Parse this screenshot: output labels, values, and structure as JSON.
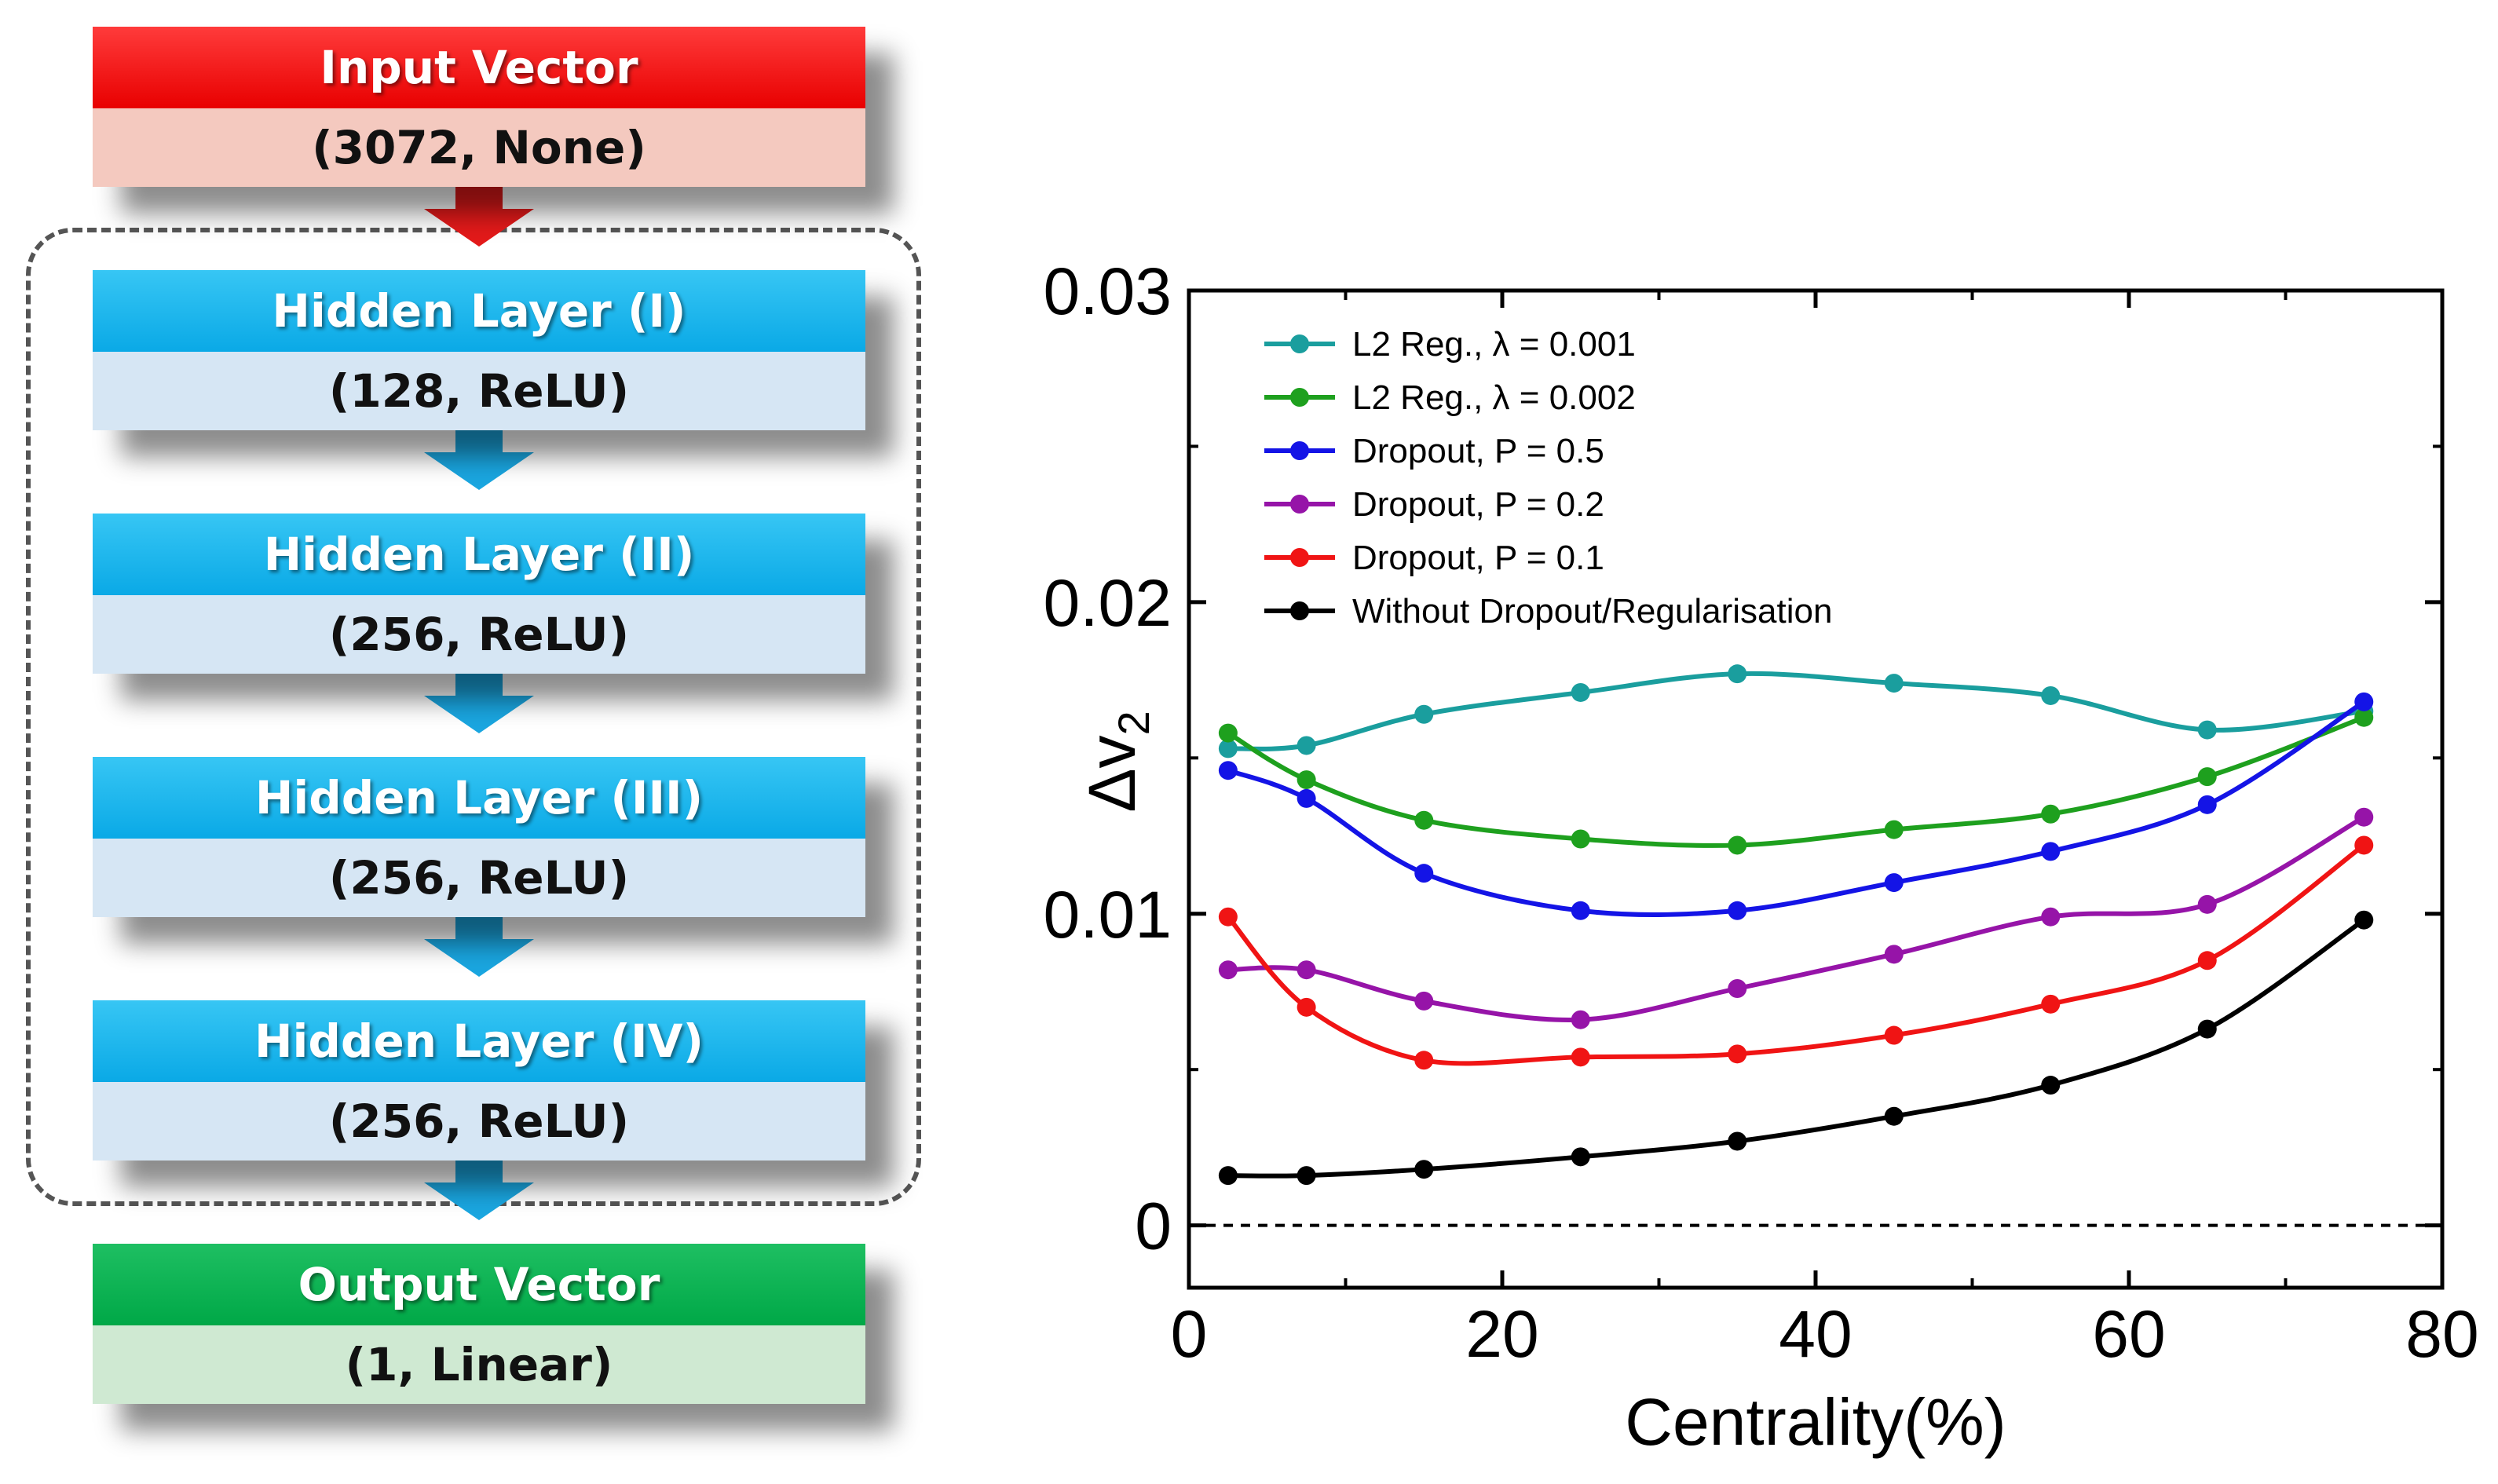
{
  "diagram": {
    "blocks": [
      {
        "title": "Input Vector",
        "detail": "(3072, None)",
        "kind": "input"
      },
      {
        "title": "Hidden Layer (I)",
        "detail": "(128, ReLU)",
        "kind": "hidden"
      },
      {
        "title": "Hidden Layer (II)",
        "detail": "(256, ReLU)",
        "kind": "hidden"
      },
      {
        "title": "Hidden Layer (III)",
        "detail": "(256, ReLU)",
        "kind": "hidden"
      },
      {
        "title": "Hidden Layer (IV)",
        "detail": "(256, ReLU)",
        "kind": "hidden"
      },
      {
        "title": "Output Vector",
        "detail": "(1, Linear)",
        "kind": "output"
      }
    ],
    "colors": {
      "input": "#e80000",
      "hidden": "#0aa9e6",
      "output": "#00a847",
      "dashed_box": "#555555"
    }
  },
  "chart_data": {
    "type": "line",
    "xlabel": "Centrality(%)",
    "ylabel": "Δv",
    "ylabel_subscript": "2",
    "xlim": [
      0,
      80
    ],
    "ylim": [
      -0.002,
      0.03
    ],
    "xticks": [
      0,
      20,
      40,
      60,
      80
    ],
    "xtick_labels": [
      "0",
      "20",
      "40",
      "60",
      "80"
    ],
    "yticks": [
      0,
      0.01,
      0.02,
      0.03
    ],
    "ytick_labels": [
      "0",
      "0.01",
      "0.02",
      "0.03"
    ],
    "grid": false,
    "zero_line": "dashed",
    "legend_position": "top-left",
    "x": [
      2.5,
      7.5,
      15,
      25,
      35,
      45,
      55,
      65,
      75
    ],
    "series": [
      {
        "name": "L2 Reg., λ = 0.001",
        "color": "#1a9e9e",
        "values": [
          0.0153,
          0.0154,
          0.0164,
          0.0171,
          0.0177,
          0.0174,
          0.017,
          0.0159,
          0.0165
        ]
      },
      {
        "name": "L2 Reg., λ = 0.002",
        "color": "#1ea01e",
        "values": [
          0.0158,
          0.0143,
          0.013,
          0.0124,
          0.0122,
          0.0127,
          0.0132,
          0.0144,
          0.0163
        ]
      },
      {
        "name": "Dropout, P = 0.5",
        "color": "#1414e6",
        "values": [
          0.0146,
          0.0137,
          0.0113,
          0.0101,
          0.0101,
          0.011,
          0.012,
          0.0135,
          0.0168
        ]
      },
      {
        "name": "Dropout, P = 0.2",
        "color": "#9614a8",
        "values": [
          0.0082,
          0.0082,
          0.0072,
          0.0066,
          0.0076,
          0.0087,
          0.0099,
          0.0103,
          0.0131
        ]
      },
      {
        "name": "Dropout, P = 0.1",
        "color": "#f01414",
        "values": [
          0.0099,
          0.007,
          0.0053,
          0.0054,
          0.0055,
          0.0061,
          0.0071,
          0.0085,
          0.0122
        ]
      },
      {
        "name": "Without Dropout/Regularisation",
        "color": "#000000",
        "values": [
          0.0016,
          0.0016,
          0.0018,
          0.0022,
          0.0027,
          0.0035,
          0.0045,
          0.0063,
          0.0098
        ]
      }
    ]
  }
}
